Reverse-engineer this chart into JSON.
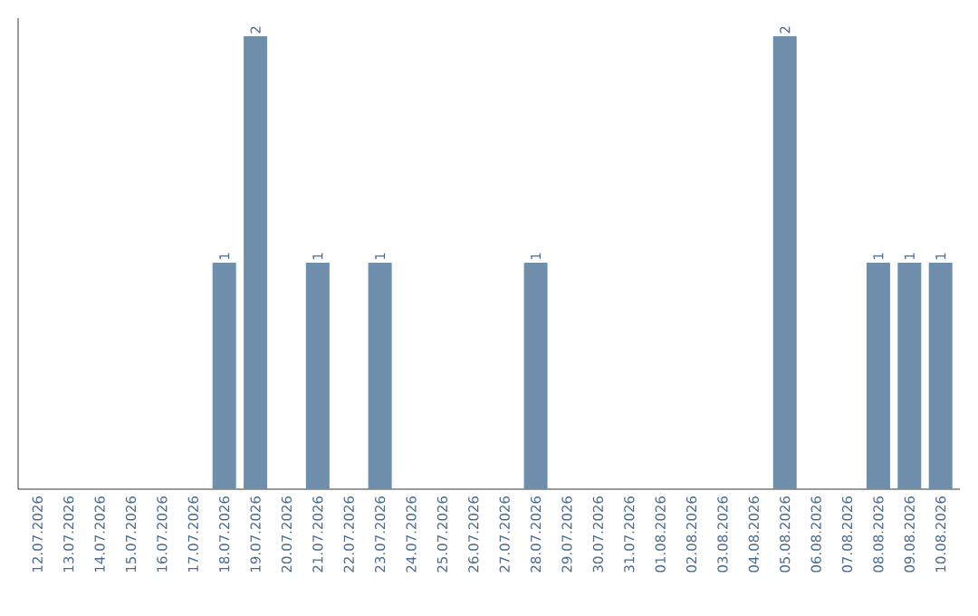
{
  "chart_data": {
    "type": "bar",
    "categories": [
      "12.07.2026",
      "13.07.2026",
      "14.07.2026",
      "15.07.2026",
      "16.07.2026",
      "17.07.2026",
      "18.07.2026",
      "19.07.2026",
      "20.07.2026",
      "21.07.2026",
      "22.07.2026",
      "23.07.2026",
      "24.07.2026",
      "25.07.2026",
      "26.07.2026",
      "27.07.2026",
      "28.07.2026",
      "29.07.2026",
      "30.07.2026",
      "31.07.2026",
      "01.08.2026",
      "02.08.2026",
      "03.08.2026",
      "04.08.2026",
      "05.08.2026",
      "06.08.2026",
      "07.08.2026",
      "08.08.2026",
      "09.08.2026",
      "10.08.2026"
    ],
    "values": [
      0,
      0,
      0,
      0,
      0,
      0,
      1,
      2,
      0,
      1,
      0,
      1,
      0,
      0,
      0,
      0,
      1,
      0,
      0,
      0,
      0,
      0,
      0,
      0,
      2,
      0,
      0,
      1,
      1,
      1
    ],
    "value_labels": [
      null,
      null,
      null,
      null,
      null,
      null,
      "1",
      "2",
      null,
      "1",
      null,
      "1",
      null,
      null,
      null,
      null,
      "1",
      null,
      null,
      null,
      null,
      null,
      null,
      null,
      "2",
      null,
      null,
      "1",
      "1",
      "1"
    ],
    "color": "#6e8eac",
    "ylim": [
      0,
      2.08
    ],
    "tick_labels": "x",
    "grid": false
  }
}
